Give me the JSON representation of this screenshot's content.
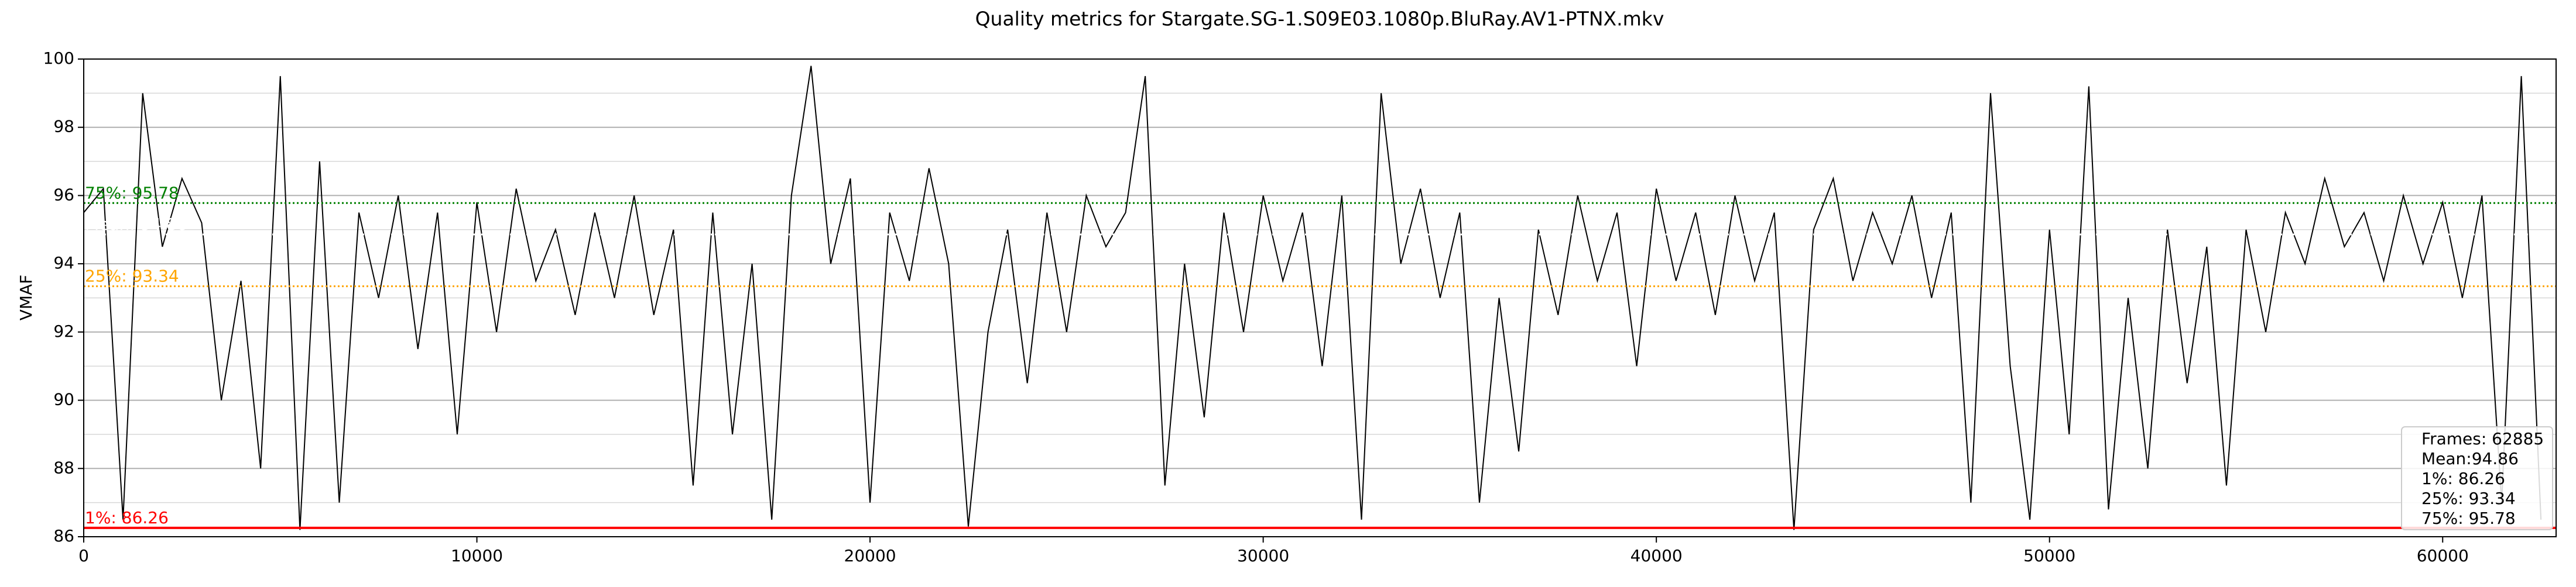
{
  "chart_data": {
    "type": "line",
    "title": "Quality metrics for Stargate.SG-1.S09E03.1080p.BluRay.AV1-PTNX.mkv",
    "y_label": "VMAF",
    "color": "#000000",
    "xlim": [
      0,
      62885
    ],
    "ylim": [
      86,
      100
    ],
    "xticks": [
      0,
      10000,
      20000,
      30000,
      40000,
      50000,
      60000
    ],
    "yticks": [
      86,
      88,
      90,
      92,
      94,
      96,
      98,
      100
    ],
    "minor_yticks": [
      87,
      89,
      91,
      93,
      95,
      97,
      99
    ],
    "grid": true,
    "x": [
      0,
      500,
      1000,
      1500,
      2000,
      2500,
      3000,
      3500,
      4000,
      4500,
      5000,
      5500,
      6000,
      6500,
      7000,
      7500,
      8000,
      8500,
      9000,
      9500,
      10000,
      10500,
      11000,
      11500,
      12000,
      12500,
      13000,
      13500,
      14000,
      14500,
      15000,
      15500,
      16000,
      16500,
      17000,
      17500,
      18000,
      18500,
      19000,
      19500,
      20000,
      20500,
      21000,
      21500,
      22000,
      22500,
      23000,
      23500,
      24000,
      24500,
      25000,
      25500,
      26000,
      26500,
      27000,
      27500,
      28000,
      28500,
      29000,
      29500,
      30000,
      30500,
      31000,
      31500,
      32000,
      32500,
      33000,
      33500,
      34000,
      34500,
      35000,
      35500,
      36000,
      36500,
      37000,
      37500,
      38000,
      38500,
      39000,
      39500,
      40000,
      40500,
      41000,
      41500,
      42000,
      42500,
      43000,
      43500,
      44000,
      44500,
      45000,
      45500,
      46000,
      46500,
      47000,
      47500,
      48000,
      48500,
      49000,
      49500,
      50000,
      50500,
      51000,
      51500,
      52000,
      52500,
      53000,
      53500,
      54000,
      54500,
      55000,
      55500,
      56000,
      56500,
      57000,
      57500,
      58000,
      58500,
      59000,
      59500,
      60000,
      60500,
      61000,
      61500,
      62000,
      62500
    ],
    "values": [
      95.5,
      96.2,
      86.5,
      99,
      94.5,
      96.5,
      95.2,
      90,
      93.5,
      88,
      99.5,
      86.2,
      97,
      87,
      95.5,
      93,
      96,
      91.5,
      95.5,
      89,
      95.8,
      92,
      96.2,
      93.5,
      95,
      92.5,
      95.5,
      93,
      96,
      92.5,
      95,
      87.5,
      95.5,
      89,
      94,
      86.5,
      96,
      99.8,
      94,
      96.5,
      87,
      95.5,
      93.5,
      96.8,
      94,
      86.3,
      92,
      95,
      90.5,
      95.5,
      92,
      96,
      94.5,
      95.5,
      99.5,
      87.5,
      94,
      89.5,
      95.5,
      92,
      96,
      93.5,
      95.5,
      91,
      96,
      86.5,
      99,
      94,
      96.2,
      93,
      95.5,
      87,
      93,
      88.5,
      95,
      92.5,
      96,
      93.5,
      95.5,
      91,
      96.2,
      93.5,
      95.5,
      92.5,
      96,
      93.5,
      95.5,
      86.2,
      95,
      96.5,
      93.5,
      95.5,
      94,
      96,
      93,
      95.5,
      87,
      99,
      91,
      86.5,
      95,
      89,
      99.2,
      86.8,
      93,
      88,
      95,
      90.5,
      94.5,
      87.5,
      95,
      92,
      95.5,
      94,
      96.5,
      94.5,
      95.5,
      93.5,
      96,
      94,
      95.8,
      93,
      96,
      87,
      99.5,
      86.5
    ],
    "reference_lines": [
      {
        "value": 95.78,
        "label": "75%: 95.78",
        "color": "#008000",
        "style": "dotted"
      },
      {
        "value": 94.86,
        "label": "Mean: 94.86",
        "color": "#ffffff",
        "style": "dotted"
      },
      {
        "value": 93.34,
        "label": "25%: 93.34",
        "color": "#ffa500",
        "style": "dotted"
      },
      {
        "value": 86.26,
        "label": "1%: 86.26",
        "color": "#ff0000",
        "style": "solid"
      }
    ],
    "stats_box": [
      "Frames: 62885",
      "Mean:94.86",
      "1%: 86.26",
      "25%: 93.34",
      "75%: 95.78"
    ]
  }
}
